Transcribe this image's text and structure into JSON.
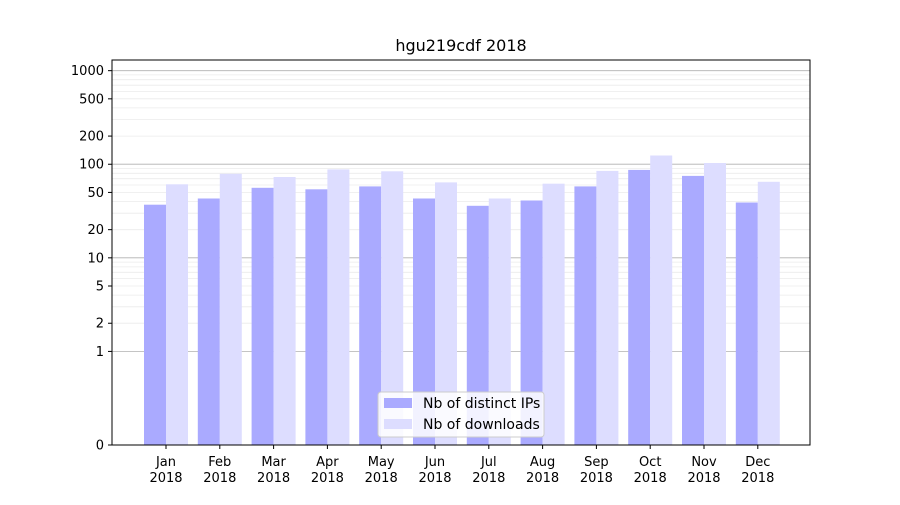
{
  "chart_data": {
    "type": "bar",
    "title": "hgu219cdf 2018",
    "xlabel": "",
    "ylabel": "",
    "y_scale": "symlog",
    "ylim": [
      0,
      1300
    ],
    "y_ticks": [
      0,
      1,
      2,
      5,
      10,
      20,
      50,
      100,
      200,
      500,
      1000
    ],
    "y_tick_labels": [
      "0",
      "1",
      "2",
      "5",
      "10",
      "20",
      "50",
      "100",
      "200",
      "500",
      "1000"
    ],
    "categories": [
      "Jan\n2018",
      "Feb\n2018",
      "Mar\n2018",
      "Apr\n2018",
      "May\n2018",
      "Jun\n2018",
      "Jul\n2018",
      "Aug\n2018",
      "Sep\n2018",
      "Oct\n2018",
      "Nov\n2018",
      "Dec\n2018"
    ],
    "series": [
      {
        "name": "Nb of distinct IPs",
        "color": "#aaaaff",
        "values": [
          37,
          43,
          56,
          54,
          58,
          43,
          36,
          41,
          58,
          87,
          75,
          39
        ]
      },
      {
        "name": "Nb of downloads",
        "color": "#ddddff",
        "values": [
          61,
          79,
          73,
          88,
          84,
          64,
          43,
          62,
          85,
          124,
          103,
          65
        ]
      }
    ],
    "grid": true,
    "legend_position": "bottom-center"
  }
}
